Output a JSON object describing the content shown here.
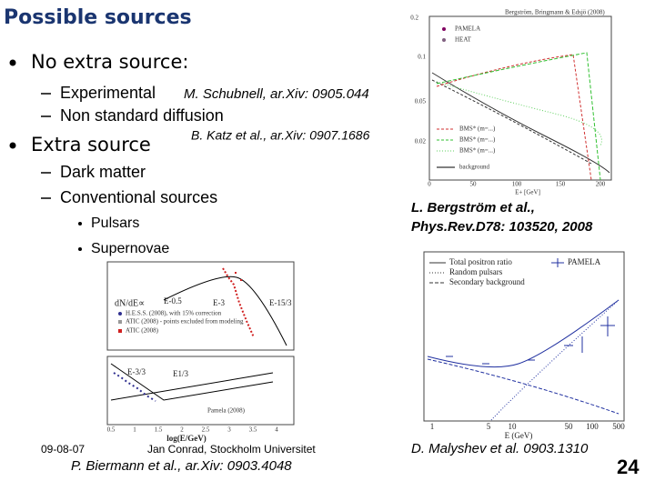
{
  "title": "Possible sources",
  "bullets": [
    {
      "text": "No extra source:",
      "sub": [
        {
          "text": "Experimental"
        },
        {
          "text": "Non standard diffusion"
        }
      ]
    },
    {
      "text": "Extra source",
      "sub": [
        {
          "text": "Dark matter"
        },
        {
          "text": "Conventional sources",
          "sub": [
            "Pulsars",
            "Supernovae"
          ]
        }
      ]
    }
  ],
  "citations": [
    "M. Schubnell, ar.Xiv: 0905.044",
    "B. Katz et al., ar.Xiv: 0907.1686",
    [
      "L. Bergström et al.,",
      "Phys.Rev.D78: 103520, 2008"
    ],
    "D. Malyshev et al. 0903.1310",
    "P. Biermann et al., ar.Xiv: 0903.4048"
  ],
  "figures": [
    {
      "header": "Bergström, Bringmann & Edsjö (2008)",
      "legend": [
        "PAMELA",
        "HEAT"
      ],
      "legend2": [
        "BMS* (m=...)",
        "BMS* (m=...)",
        "BMS* (m=...)",
        "background"
      ],
      "xlabel": "E+ [GeV]",
      "xticks": [
        "0",
        "50",
        "100",
        "150",
        "200"
      ],
      "yticks": [
        "0.2",
        "0.1",
        "0.05",
        "0.02"
      ]
    },
    {
      "legend": [
        "Total positron ratio",
        "Random pulsars",
        "Secondary background",
        "PAMELA"
      ],
      "xlabel": "E (GeV)",
      "xticks": [
        "1",
        "5",
        "10",
        "50",
        "100",
        "500"
      ]
    },
    {
      "annotations": [
        "dN/dE∝",
        "E-0.5",
        "E-3",
        "E-15/3",
        "E-3/3",
        "E1/3"
      ],
      "legend": [
        "H.E.S.S. (2008), with 15% correction",
        "ATIC (2008) - points excluded from modeling",
        "ATIC (2008)"
      ],
      "legend2": "Pamela (2008)",
      "xlabel": "log(E/GeV)",
      "xticks": [
        "0.5",
        "1",
        "1.5",
        "2",
        "2.5",
        "3",
        "3.5",
        "4"
      ]
    }
  ],
  "footer": {
    "date": "09-08-07",
    "author": "Jan Conrad, Stockholm Universitet",
    "page": "24"
  }
}
